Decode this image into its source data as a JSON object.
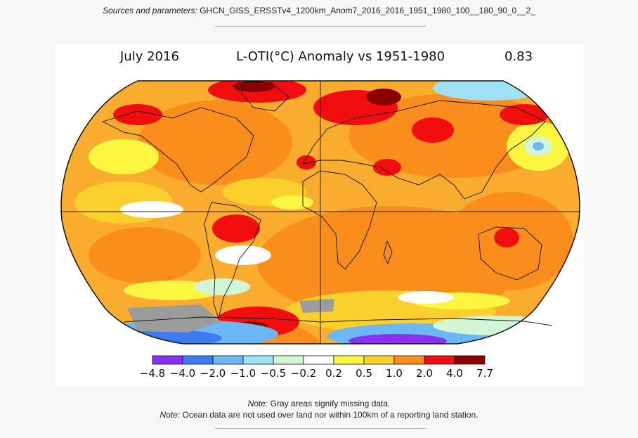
{
  "header": {
    "sources_label": "Sources and parameters:",
    "sources_value": "GHCN_GISS_ERSSTv4_1200km_Anom7_2016_2016_1951_1980_100__180_90_0__2_"
  },
  "map": {
    "month_label": "July 2016",
    "title": "L-OTI(°C) Anomaly vs 1951-1980",
    "global_mean": "0.83",
    "projection": "Robinson",
    "colors": {
      "missing": "#9c9c9c",
      "background_ocean": "#f9ac2d"
    }
  },
  "legend": {
    "bins": [
      {
        "color": "#8b2ff0"
      },
      {
        "color": "#3d7bee"
      },
      {
        "color": "#6cb8f4"
      },
      {
        "color": "#9fe2f5"
      },
      {
        "color": "#d2f5d6"
      },
      {
        "color": "#ffffff"
      },
      {
        "color": "#fdf640"
      },
      {
        "color": "#fbd02c"
      },
      {
        "color": "#fb8d1d"
      },
      {
        "color": "#f20e0e"
      },
      {
        "color": "#8a0000"
      }
    ],
    "ticks": [
      "−4.8",
      "−4.0",
      "−2.0",
      "−1.0",
      "−0.5",
      "−0.2",
      "0.2",
      "0.5",
      "1.0",
      "2.0",
      "4.0",
      "7.7"
    ]
  },
  "notes": {
    "note1_label": "Note:",
    "note1_text": "Gray areas signify missing data.",
    "note2_label": "Note:",
    "note2_text": "Ocean data are not used over land nor within 100km of a reporting land station."
  }
}
